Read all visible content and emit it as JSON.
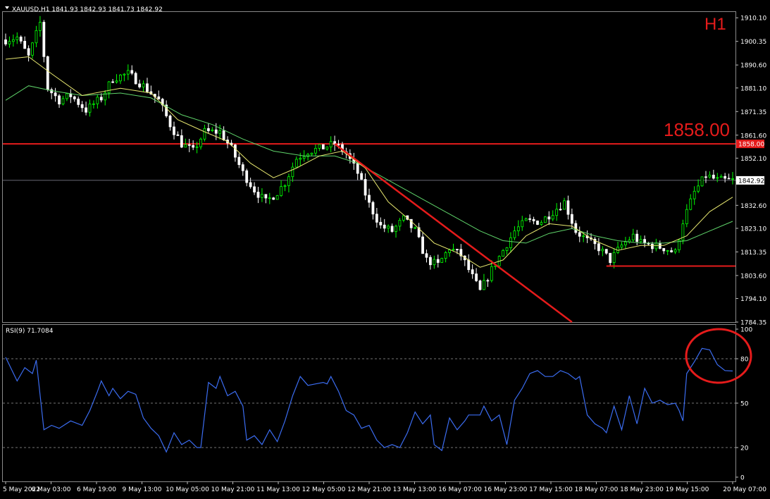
{
  "window": {
    "symbol_header": "XAUUSD,H1  1841.93 1842.93 1841.73 1842.92",
    "timeframe": "H1",
    "level_label": "1858.00",
    "level_tag": "1858.00",
    "current_tag": "1842.92"
  },
  "chart_data": [
    {
      "type": "candlestick",
      "symbol": "XAUUSD",
      "timeframe": "H1",
      "ohlc_last": {
        "open": 1841.93,
        "high": 1842.93,
        "low": 1841.73,
        "close": 1842.92
      },
      "ylim": [
        1784.35,
        1912.5
      ],
      "y_ticks": [
        "1910.10",
        "1900.35",
        "1890.60",
        "1881.10",
        "1871.35",
        "1861.60",
        "1852.10",
        "1842.92",
        "1832.60",
        "1823.10",
        "1813.35",
        "1803.60",
        "1794.10",
        "1784.35"
      ],
      "x_ticks": [
        "5 May 2022",
        "6 May 03:00",
        "6 May 19:00",
        "9 May 13:00",
        "10 May 05:00",
        "10 May 21:00",
        "11 May 13:00",
        "12 May 05:00",
        "12 May 21:00",
        "13 May 13:00",
        "16 May 07:00",
        "16 May 23:00",
        "17 May 15:00",
        "18 May 07:00",
        "18 May 23:00",
        "19 May 15:00",
        "20 May 07:00"
      ],
      "price_path": [
        [
          0,
          1901
        ],
        [
          3,
          1902
        ],
        [
          6,
          1894
        ],
        [
          9,
          1908
        ],
        [
          11,
          1881
        ],
        [
          14,
          1876
        ],
        [
          17,
          1878
        ],
        [
          21,
          1872
        ],
        [
          25,
          1877
        ],
        [
          28,
          1885
        ],
        [
          32,
          1887
        ],
        [
          36,
          1882
        ],
        [
          40,
          1876
        ],
        [
          43,
          1866
        ],
        [
          46,
          1858
        ],
        [
          49,
          1855
        ],
        [
          52,
          1863
        ],
        [
          56,
          1863
        ],
        [
          59,
          1856
        ],
        [
          62,
          1846
        ],
        [
          65,
          1839
        ],
        [
          68,
          1834
        ],
        [
          71,
          1838
        ],
        [
          73,
          1842
        ],
        [
          76,
          1852
        ],
        [
          79,
          1855
        ],
        [
          82,
          1856
        ],
        [
          86,
          1858
        ],
        [
          89,
          1854
        ],
        [
          92,
          1846
        ],
        [
          95,
          1833
        ],
        [
          98,
          1824
        ],
        [
          101,
          1822
        ],
        [
          104,
          1827
        ],
        [
          107,
          1822
        ],
        [
          110,
          1810
        ],
        [
          113,
          1808
        ],
        [
          116,
          1815
        ],
        [
          119,
          1812
        ],
        [
          122,
          1803
        ],
        [
          124,
          1797
        ],
        [
          127,
          1806
        ],
        [
          130,
          1814
        ],
        [
          133,
          1822
        ],
        [
          136,
          1826
        ],
        [
          140,
          1826
        ],
        [
          143,
          1830
        ],
        [
          146,
          1834
        ],
        [
          149,
          1822
        ],
        [
          152,
          1818
        ],
        [
          155,
          1815
        ],
        [
          158,
          1810
        ],
        [
          161,
          1816
        ],
        [
          164,
          1820
        ],
        [
          166,
          1817
        ],
        [
          169,
          1816
        ],
        [
          172,
          1815
        ],
        [
          175,
          1813
        ],
        [
          177,
          1826
        ],
        [
          180,
          1838
        ],
        [
          183,
          1845
        ],
        [
          186,
          1843
        ],
        [
          190,
          1842.92
        ]
      ],
      "ma_fast": [
        [
          0,
          1893
        ],
        [
          6,
          1894
        ],
        [
          12,
          1887
        ],
        [
          20,
          1878
        ],
        [
          30,
          1881
        ],
        [
          38,
          1879
        ],
        [
          45,
          1868
        ],
        [
          52,
          1863
        ],
        [
          58,
          1859
        ],
        [
          64,
          1850
        ],
        [
          70,
          1844
        ],
        [
          76,
          1848
        ],
        [
          82,
          1853
        ],
        [
          88,
          1855
        ],
        [
          94,
          1848
        ],
        [
          100,
          1834
        ],
        [
          106,
          1826
        ],
        [
          112,
          1817
        ],
        [
          118,
          1813
        ],
        [
          124,
          1807
        ],
        [
          130,
          1810
        ],
        [
          136,
          1820
        ],
        [
          142,
          1825
        ],
        [
          148,
          1824
        ],
        [
          154,
          1818
        ],
        [
          160,
          1814
        ],
        [
          166,
          1816
        ],
        [
          172,
          1816
        ],
        [
          178,
          1820
        ],
        [
          184,
          1830
        ],
        [
          190,
          1836
        ]
      ],
      "ma_slow": [
        [
          0,
          1876
        ],
        [
          6,
          1882
        ],
        [
          12,
          1880
        ],
        [
          20,
          1878
        ],
        [
          30,
          1879
        ],
        [
          38,
          1877
        ],
        [
          46,
          1870
        ],
        [
          54,
          1866
        ],
        [
          62,
          1860
        ],
        [
          70,
          1855
        ],
        [
          78,
          1853
        ],
        [
          86,
          1853
        ],
        [
          92,
          1850
        ],
        [
          100,
          1843
        ],
        [
          108,
          1836
        ],
        [
          116,
          1829
        ],
        [
          124,
          1822
        ],
        [
          130,
          1818
        ],
        [
          136,
          1817
        ],
        [
          142,
          1821
        ],
        [
          148,
          1823
        ],
        [
          154,
          1820
        ],
        [
          160,
          1818
        ],
        [
          166,
          1817
        ],
        [
          172,
          1817
        ],
        [
          178,
          1818
        ],
        [
          184,
          1822
        ],
        [
          190,
          1826
        ]
      ],
      "horizontal_levels": [
        1858.0,
        1842.92
      ],
      "support_line": {
        "start_bar": 157,
        "end_bar": 190,
        "price": 1807.5
      },
      "trendline": {
        "start": [
          86,
          1858
        ],
        "end": [
          148,
          1784.35
        ]
      }
    },
    {
      "type": "line",
      "name": "RSI(9) 71.7084",
      "header": "RSI(9) 71.7084",
      "ylim": [
        0,
        100
      ],
      "y_ticks": [
        "100",
        "80",
        "50",
        "20",
        "0"
      ],
      "levels": [
        80,
        50,
        20
      ],
      "values": [
        [
          0,
          81
        ],
        [
          3,
          65
        ],
        [
          5,
          74
        ],
        [
          7,
          70
        ],
        [
          8,
          79
        ],
        [
          10,
          32
        ],
        [
          12,
          35
        ],
        [
          14,
          33
        ],
        [
          17,
          38
        ],
        [
          20,
          35
        ],
        [
          22,
          45
        ],
        [
          24,
          58
        ],
        [
          25,
          65
        ],
        [
          27,
          55
        ],
        [
          28,
          60
        ],
        [
          30,
          53
        ],
        [
          32,
          58
        ],
        [
          34,
          56
        ],
        [
          36,
          40
        ],
        [
          38,
          33
        ],
        [
          40,
          28
        ],
        [
          42,
          17
        ],
        [
          44,
          30
        ],
        [
          46,
          22
        ],
        [
          48,
          25
        ],
        [
          50,
          20
        ],
        [
          51,
          20
        ],
        [
          53,
          64
        ],
        [
          55,
          60
        ],
        [
          56,
          68
        ],
        [
          58,
          55
        ],
        [
          60,
          58
        ],
        [
          62,
          48
        ],
        [
          63,
          25
        ],
        [
          65,
          28
        ],
        [
          67,
          22
        ],
        [
          69,
          32
        ],
        [
          71,
          24
        ],
        [
          73,
          38
        ],
        [
          75,
          55
        ],
        [
          77,
          68
        ],
        [
          79,
          62
        ],
        [
          81,
          63
        ],
        [
          83,
          64
        ],
        [
          84,
          63
        ],
        [
          85,
          68
        ],
        [
          87,
          58
        ],
        [
          89,
          45
        ],
        [
          91,
          42
        ],
        [
          93,
          33
        ],
        [
          95,
          35
        ],
        [
          97,
          25
        ],
        [
          99,
          20
        ],
        [
          101,
          22
        ],
        [
          103,
          20
        ],
        [
          105,
          30
        ],
        [
          107,
          44
        ],
        [
          109,
          36
        ],
        [
          111,
          42
        ],
        [
          112,
          22
        ],
        [
          114,
          18
        ],
        [
          116,
          40
        ],
        [
          118,
          32
        ],
        [
          120,
          38
        ],
        [
          121,
          42
        ],
        [
          124,
          42
        ],
        [
          125,
          48
        ],
        [
          127,
          38
        ],
        [
          129,
          42
        ],
        [
          131,
          22
        ],
        [
          133,
          52
        ],
        [
          135,
          60
        ],
        [
          137,
          70
        ],
        [
          139,
          72
        ],
        [
          141,
          68
        ],
        [
          143,
          68
        ],
        [
          145,
          72
        ],
        [
          147,
          70
        ],
        [
          149,
          66
        ],
        [
          150,
          68
        ],
        [
          152,
          42
        ],
        [
          154,
          36
        ],
        [
          156,
          33
        ],
        [
          157,
          30
        ],
        [
          159,
          48
        ],
        [
          161,
          32
        ],
        [
          163,
          55
        ],
        [
          165,
          36
        ],
        [
          167,
          60
        ],
        [
          169,
          50
        ],
        [
          171,
          52
        ],
        [
          173,
          49
        ],
        [
          175,
          50
        ],
        [
          176,
          45
        ],
        [
          177,
          38
        ],
        [
          178,
          70
        ],
        [
          180,
          78
        ],
        [
          182,
          87
        ],
        [
          184,
          86
        ],
        [
          186,
          76
        ],
        [
          188,
          72
        ],
        [
          190,
          71.7
        ]
      ]
    }
  ],
  "colors": {
    "background": "#000000",
    "candle_bull": "#00ff00",
    "candle_bear": "#ffffff",
    "ma_fast": "#e8e870",
    "ma_slow": "#5fd46a",
    "rsi_line": "#3b6cf0",
    "annotation": "#e51b1b",
    "grid": "#808080"
  }
}
